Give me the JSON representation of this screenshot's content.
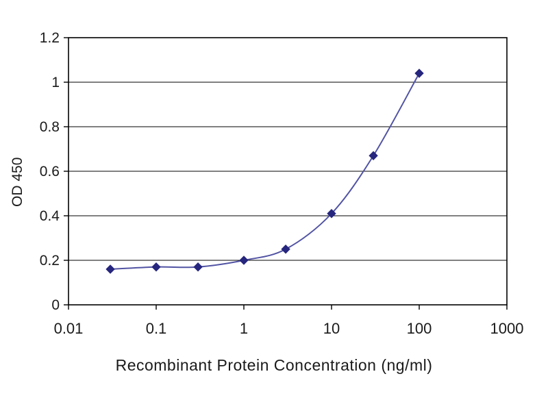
{
  "chart_data": {
    "type": "line",
    "title": "",
    "xlabel": "Recombinant Protein Concentration (ng/ml)",
    "ylabel": "OD 450",
    "x_scale": "log",
    "xlim": [
      0.01,
      1000
    ],
    "ylim": [
      0,
      1.2
    ],
    "grid": "horizontal",
    "legend": "none",
    "x_ticks": [
      {
        "v": 0.01,
        "label": "0.01"
      },
      {
        "v": 0.1,
        "label": "0.1"
      },
      {
        "v": 1,
        "label": "1"
      },
      {
        "v": 10,
        "label": "10"
      },
      {
        "v": 100,
        "label": "100"
      },
      {
        "v": 1000,
        "label": "1000"
      }
    ],
    "y_ticks": [
      {
        "v": 0,
        "label": "0"
      },
      {
        "v": 0.2,
        "label": "0.2"
      },
      {
        "v": 0.4,
        "label": "0.4"
      },
      {
        "v": 0.6,
        "label": "0.6"
      },
      {
        "v": 0.8,
        "label": "0.8"
      },
      {
        "v": 1,
        "label": "1"
      },
      {
        "v": 1.2,
        "label": "1.2"
      }
    ],
    "series": [
      {
        "name": "OD 450",
        "marker": "diamond",
        "x": [
          0.03,
          0.1,
          0.3,
          1,
          3,
          10,
          30,
          100
        ],
        "y": [
          0.16,
          0.17,
          0.17,
          0.2,
          0.25,
          0.41,
          0.67,
          1.04
        ]
      }
    ]
  },
  "colors": {
    "line": "#5153a3",
    "marker": "#26267e",
    "axis": "#000000",
    "grid": "#000000",
    "background": "#ffffff"
  }
}
